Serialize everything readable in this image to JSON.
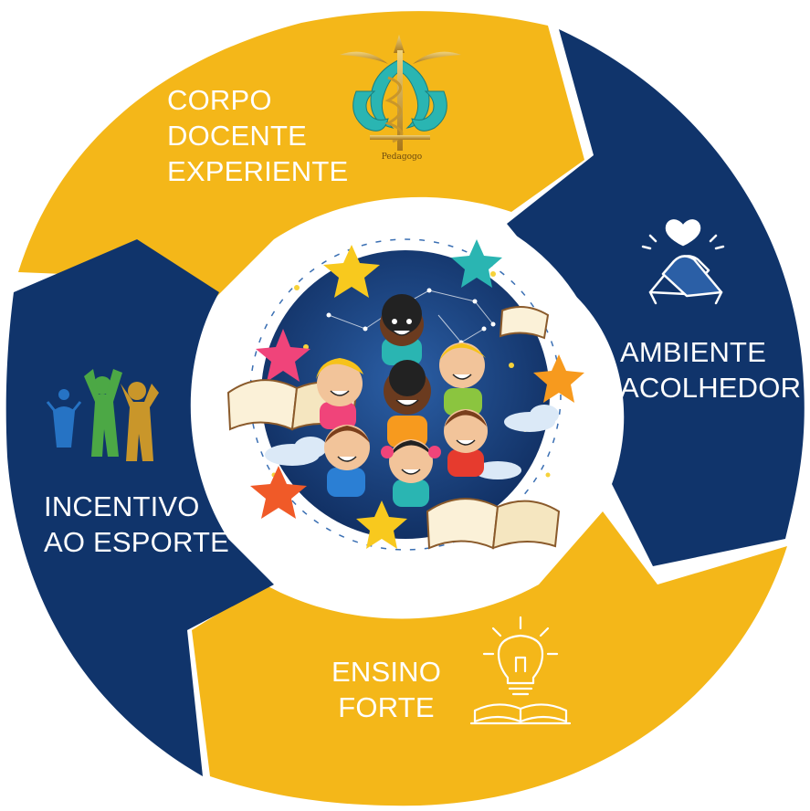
{
  "colors": {
    "yellow": "#F4B719",
    "navy": "#10346B",
    "gold": "#C9962A",
    "teal": "#2AB5B2",
    "white": "#FFFFFF"
  },
  "segments": [
    {
      "key": "corpo",
      "lines": [
        "CORPO",
        "DOCENTE",
        "EXPERIENTE"
      ],
      "icon": "pedagogo-emblem-icon",
      "icon_caption": "Pedagogo",
      "color": "yellow"
    },
    {
      "key": "ambiente",
      "lines": [
        "AMBIENTE",
        "ACOLHEDOR"
      ],
      "icon": "handshake-heart-icon",
      "color": "navy"
    },
    {
      "key": "ensino",
      "lines": [
        "ENSINO",
        "FORTE"
      ],
      "icon": "lightbulb-book-icon",
      "color": "yellow"
    },
    {
      "key": "incentivo",
      "lines": [
        "INCENTIVO",
        "AO ESPORTE"
      ],
      "icon": "athletes-icon",
      "color": "navy"
    }
  ],
  "center_image": "children-stars-books-illustration"
}
